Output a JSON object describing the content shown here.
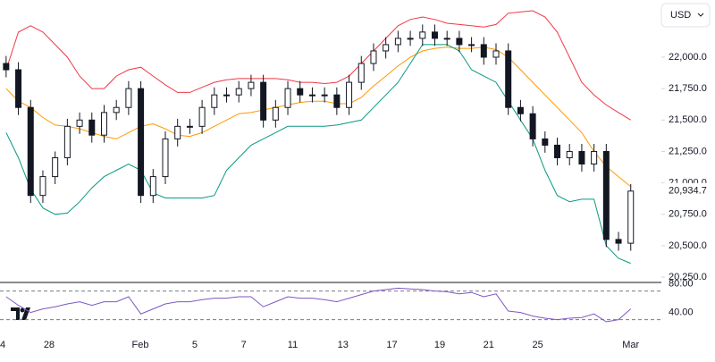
{
  "chart_data": {
    "type": "candlestick",
    "currency": "USD",
    "x": [
      1,
      2,
      3,
      4,
      5,
      6,
      7,
      8,
      9,
      10,
      11,
      12,
      13,
      14,
      15,
      16,
      17,
      18,
      19,
      20,
      21,
      22,
      23,
      24,
      25,
      26,
      27,
      28,
      29,
      30,
      31,
      32,
      33,
      34,
      35,
      36,
      37,
      38,
      39,
      40,
      41,
      42,
      43,
      44,
      45,
      46,
      47,
      48,
      49,
      50,
      51,
      52
    ],
    "open": [
      21950,
      21900,
      21600,
      20900,
      21050,
      21200,
      21450,
      21500,
      21380,
      21560,
      21600,
      21750,
      20900,
      21050,
      21350,
      21450,
      21450,
      21600,
      21700,
      21700,
      21750,
      21800,
      21500,
      21600,
      21750,
      21700,
      21700,
      21700,
      21600,
      21800,
      21950,
      22050,
      22100,
      22150,
      22150,
      22200,
      22150,
      22150,
      22100,
      22100,
      22000,
      22050,
      21600,
      21550,
      21350,
      21300,
      21200,
      21250,
      21150,
      21250,
      20550,
      20520
    ],
    "high": [
      22010,
      21960,
      21660,
      21100,
      21250,
      21510,
      21560,
      21560,
      21620,
      21660,
      21810,
      21810,
      21110,
      21410,
      21510,
      21510,
      21660,
      21760,
      21760,
      21810,
      21860,
      21860,
      21660,
      21810,
      21810,
      21760,
      21760,
      21760,
      21860,
      22010,
      22110,
      22160,
      22210,
      22210,
      22260,
      22260,
      22210,
      22210,
      22160,
      22160,
      22110,
      22110,
      21660,
      21610,
      21410,
      21360,
      21310,
      21310,
      21310,
      21310,
      20610,
      20990
    ],
    "low": [
      21840,
      21540,
      20840,
      20840,
      20990,
      21140,
      21390,
      21320,
      21320,
      21500,
      21540,
      20840,
      20840,
      20990,
      21290,
      21390,
      21390,
      21540,
      21640,
      21640,
      21690,
      21440,
      21440,
      21540,
      21640,
      21640,
      21640,
      21540,
      21540,
      21740,
      21890,
      21990,
      22040,
      22090,
      22090,
      22090,
      22090,
      22040,
      22040,
      21940,
      21940,
      21540,
      21490,
      21290,
      21240,
      21140,
      21140,
      21090,
      21090,
      20490,
      20460,
      20460
    ],
    "close": [
      21900,
      21600,
      20900,
      21050,
      21200,
      21450,
      21500,
      21380,
      21560,
      21600,
      21750,
      20900,
      21050,
      21350,
      21450,
      21450,
      21600,
      21700,
      21700,
      21750,
      21800,
      21500,
      21600,
      21750,
      21700,
      21700,
      21700,
      21600,
      21800,
      21950,
      22050,
      22100,
      22150,
      22150,
      22200,
      22150,
      22150,
      22100,
      22100,
      22000,
      22050,
      21600,
      21550,
      21350,
      21300,
      21200,
      21250,
      21150,
      21250,
      20550,
      20520,
      20934.7
    ],
    "last_price_label": "20,934.7",
    "bollinger": {
      "upper": {
        "color": "#f23645",
        "values": [
          21900,
          22200,
          22250,
          22200,
          22100,
          22000,
          21850,
          21750,
          21750,
          21850,
          21900,
          21920,
          21850,
          21780,
          21720,
          21720,
          21760,
          21800,
          21820,
          21830,
          21830,
          21830,
          21830,
          21820,
          21800,
          21800,
          21790,
          21800,
          21850,
          21950,
          22050,
          22150,
          22250,
          22300,
          22320,
          22300,
          22270,
          22260,
          22250,
          22240,
          22260,
          22350,
          22360,
          22370,
          22320,
          22200,
          22000,
          21800,
          21700,
          21620,
          21560,
          21500
        ]
      },
      "middle": {
        "color": "#ff9800",
        "values": [
          21750,
          21650,
          21600,
          21520,
          21460,
          21450,
          21430,
          21400,
          21370,
          21350,
          21400,
          21450,
          21470,
          21430,
          21380,
          21370,
          21400,
          21450,
          21500,
          21550,
          21560,
          21580,
          21600,
          21620,
          21640,
          21650,
          21650,
          21630,
          21630,
          21680,
          21770,
          21850,
          21930,
          22000,
          22050,
          22070,
          22080,
          22070,
          22070,
          22080,
          22060,
          22000,
          21900,
          21800,
          21700,
          21600,
          21500,
          21400,
          21250,
          21130,
          21050,
          20970
        ]
      },
      "lower": {
        "color": "#089981",
        "values": [
          21400,
          21200,
          20950,
          20800,
          20750,
          20760,
          20850,
          20960,
          21050,
          21100,
          21150,
          21100,
          20920,
          20880,
          20880,
          20880,
          20880,
          20900,
          21100,
          21200,
          21300,
          21350,
          21400,
          21450,
          21450,
          21450,
          21450,
          21460,
          21480,
          21500,
          21600,
          21700,
          21800,
          21950,
          22100,
          22100,
          22100,
          22050,
          21900,
          21850,
          21800,
          21650,
          21500,
          21350,
          21100,
          20900,
          20850,
          20870,
          20870,
          20500,
          20400,
          20360
        ]
      }
    },
    "xlim": [
      0.5,
      54.5
    ],
    "xticks": [
      {
        "value": 0.72,
        "label": "4"
      },
      {
        "value": 4.51,
        "label": "28"
      },
      {
        "value": 11.96,
        "label": "Feb"
      },
      {
        "value": 16.4,
        "label": "5"
      },
      {
        "value": 20.4,
        "label": "7"
      },
      {
        "value": 24.4,
        "label": "11"
      },
      {
        "value": 28.5,
        "label": "13"
      },
      {
        "value": 32.5,
        "label": "17"
      },
      {
        "value": 36.4,
        "label": "19"
      },
      {
        "value": 40.4,
        "label": "21"
      },
      {
        "value": 44.4,
        "label": "25"
      },
      {
        "value": 52,
        "label": "Mar"
      }
    ],
    "ylim": [
      20215,
      22455
    ],
    "yticks": [
      {
        "value": 20250,
        "label": "20,250.0"
      },
      {
        "value": 20500,
        "label": "20,500.0"
      },
      {
        "value": 20750,
        "label": "20,750.0"
      },
      {
        "value": 21000,
        "label": "21,000.0"
      },
      {
        "value": 21250,
        "label": "21,250.0"
      },
      {
        "value": 21500,
        "label": "21,500.0"
      },
      {
        "value": 21750,
        "label": "21,750.0"
      },
      {
        "value": 22000,
        "label": "22,000.0"
      }
    ],
    "rsi": {
      "color": "#7e57c2",
      "ylim": [
        12,
        82
      ],
      "yticks": [
        {
          "value": 80,
          "label": "80.00"
        },
        {
          "value": 40,
          "label": "40.00"
        }
      ],
      "levels": [
        70,
        30
      ],
      "values": [
        62,
        50,
        40,
        45,
        48,
        52,
        55,
        50,
        55,
        55,
        62,
        38,
        45,
        52,
        55,
        55,
        58,
        60,
        60,
        62,
        62,
        48,
        55,
        62,
        60,
        60,
        58,
        55,
        60,
        65,
        70,
        72,
        74,
        73,
        72,
        70,
        69,
        66,
        68,
        62,
        66,
        42,
        40,
        35,
        32,
        30,
        32,
        33,
        38,
        27,
        30,
        45
      ]
    }
  }
}
